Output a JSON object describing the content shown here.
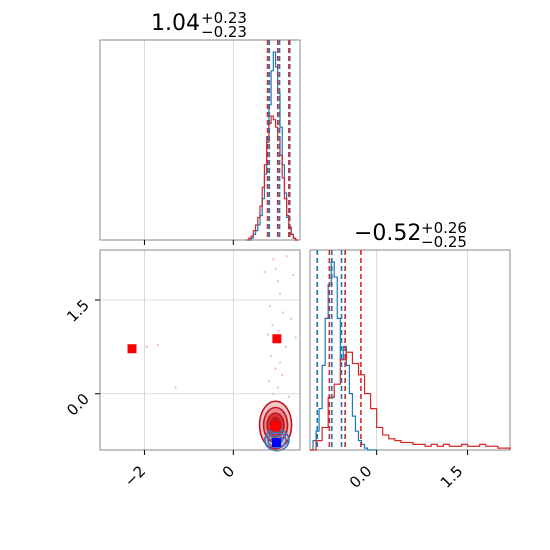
{
  "chart_data": {
    "type": "corner",
    "panels": [
      {
        "id": "marginal-x",
        "type": "histogram",
        "title": {
          "value": "1.04",
          "plus": "+0.23",
          "minus": "−0.23"
        },
        "xlim": [
          -3.0,
          1.5
        ],
        "series": [
          {
            "name": "blue",
            "color": "#1f77b4",
            "bins": [
              0.3,
              0.35,
              0.4,
              0.45,
              0.5,
              0.55,
              0.6,
              0.65,
              0.7,
              0.75,
              0.8,
              0.85,
              0.9,
              0.95,
              1.0,
              1.05,
              1.1,
              1.15,
              1.2,
              1.25,
              1.3,
              1.35,
              1.4,
              1.45
            ],
            "heights": [
              0.0,
              0.0,
              0.01,
              0.03,
              0.05,
              0.08,
              0.13,
              0.22,
              0.35,
              0.55,
              0.72,
              0.9,
              1.0,
              0.92,
              0.78,
              0.6,
              0.4,
              0.25,
              0.12,
              0.06,
              0.03,
              0.01,
              0.0
            ]
          },
          {
            "name": "red",
            "color": "#d62728",
            "bins": [
              0.3,
              0.35,
              0.4,
              0.45,
              0.5,
              0.55,
              0.6,
              0.65,
              0.7,
              0.75,
              0.8,
              0.85,
              0.9,
              0.95,
              1.0,
              1.05,
              1.1,
              1.15,
              1.2,
              1.25,
              1.3,
              1.35,
              1.4,
              1.45
            ],
            "heights": [
              0.0,
              0.01,
              0.02,
              0.05,
              0.08,
              0.12,
              0.18,
              0.28,
              0.4,
              0.52,
              0.62,
              0.66,
              0.64,
              0.6,
              0.55,
              0.45,
              0.33,
              0.22,
              0.13,
              0.07,
              0.03,
              0.01,
              0.0
            ]
          }
        ],
        "quantiles": [
          {
            "color": "#1f77b4",
            "values": [
              0.81,
              1.04,
              1.27
            ]
          },
          {
            "color": "#d62728",
            "values": [
              0.77,
              1.0,
              1.25
            ]
          }
        ]
      },
      {
        "id": "marginal-y",
        "type": "histogram",
        "title": {
          "value": "−0.52",
          "plus": "+0.26",
          "minus": "−0.25"
        },
        "xlim": [
          -1.1,
          2.2
        ],
        "xticks": [
          {
            "value": 0.0,
            "label": "0.0"
          },
          {
            "value": 1.5,
            "label": "1.5"
          }
        ],
        "series": [
          {
            "name": "blue",
            "color": "#1f77b4",
            "bins": [
              -1.1,
              -1.05,
              -1.0,
              -0.95,
              -0.9,
              -0.85,
              -0.8,
              -0.75,
              -0.7,
              -0.65,
              -0.6,
              -0.55,
              -0.5,
              -0.45,
              -0.4,
              -0.35,
              -0.3,
              -0.25,
              -0.2,
              -0.15,
              -0.1,
              -0.05,
              0.0
            ],
            "heights": [
              0.0,
              0.05,
              0.1,
              0.22,
              0.45,
              0.7,
              0.88,
              1.0,
              0.92,
              0.7,
              0.48,
              0.55,
              0.45,
              0.3,
              0.18,
              0.1,
              0.05,
              0.03,
              0.01,
              0.0,
              0.0,
              0.0
            ]
          },
          {
            "name": "red",
            "color": "#d62728",
            "bins": [
              -1.1,
              -1.0,
              -0.9,
              -0.8,
              -0.7,
              -0.6,
              -0.5,
              -0.4,
              -0.3,
              -0.2,
              -0.1,
              0.0,
              0.1,
              0.2,
              0.3,
              0.4,
              0.5,
              0.6,
              0.7,
              0.8,
              0.9,
              1.0,
              1.1,
              1.2,
              1.3,
              1.4,
              1.5,
              1.6,
              1.7,
              1.8,
              1.9,
              2.0,
              2.1,
              2.2
            ],
            "heights": [
              0.0,
              0.05,
              0.12,
              0.28,
              0.35,
              0.48,
              0.52,
              0.46,
              0.4,
              0.3,
              0.22,
              0.12,
              0.08,
              0.06,
              0.05,
              0.04,
              0.04,
              0.03,
              0.03,
              0.02,
              0.03,
              0.02,
              0.03,
              0.02,
              0.02,
              0.03,
              0.02,
              0.02,
              0.03,
              0.02,
              0.02,
              0.01,
              0.01
            ]
          }
        ],
        "quantiles": [
          {
            "color": "#1f77b4",
            "values": [
              -0.98,
              -0.74,
              -0.58
            ]
          },
          {
            "color": "#d62728",
            "values": [
              -0.78,
              -0.52,
              -0.26
            ]
          }
        ]
      },
      {
        "id": "joint",
        "type": "contour-scatter",
        "xlim": [
          -3.0,
          1.5
        ],
        "ylim": [
          -0.9,
          2.3
        ],
        "xticks": [
          {
            "value": -2,
            "label": "−2"
          },
          {
            "value": 0,
            "label": "0"
          }
        ],
        "yticks": [
          {
            "value": 0.0,
            "label": "0.0"
          },
          {
            "value": 1.5,
            "label": "1.5"
          }
        ],
        "red_contours": {
          "center": [
            0.95,
            -0.5
          ],
          "ellipses": [
            {
              "rx": 0.36,
              "ry": 0.38,
              "fill": "#f6c6c8"
            },
            {
              "rx": 0.27,
              "ry": 0.28,
              "fill": "#e98b90"
            },
            {
              "rx": 0.19,
              "ry": 0.19,
              "fill": "#d9343c"
            },
            {
              "rx": 0.11,
              "ry": 0.12,
              "fill": "#c0161e"
            }
          ]
        },
        "blue_contours": {
          "center": [
            0.98,
            -0.74
          ],
          "ellipses": [
            {
              "rx": 0.27,
              "ry": 0.17
            },
            {
              "rx": 0.2,
              "ry": 0.12
            },
            {
              "rx": 0.12,
              "ry": 0.07
            }
          ]
        },
        "scatter_points": [
          [
            -2.2,
            0.72
          ],
          [
            -2.35,
            0.68
          ],
          [
            -1.95,
            0.75
          ],
          [
            -1.7,
            0.78
          ],
          [
            -1.3,
            0.1
          ],
          [
            0.9,
            2.15
          ],
          [
            0.95,
            2.0
          ],
          [
            1.0,
            1.8
          ],
          [
            1.05,
            1.6
          ],
          [
            0.82,
            1.4
          ],
          [
            1.12,
            1.3
          ],
          [
            0.88,
            1.1
          ],
          [
            1.02,
            1.0
          ],
          [
            0.92,
            0.85
          ],
          [
            1.18,
            0.75
          ],
          [
            0.85,
            0.6
          ],
          [
            1.05,
            0.5
          ],
          [
            0.95,
            0.4
          ],
          [
            1.1,
            0.3
          ],
          [
            0.8,
            0.2
          ],
          [
            1.0,
            0.1
          ],
          [
            0.9,
            0.0
          ],
          [
            1.25,
            -0.05
          ],
          [
            1.35,
            1.9
          ],
          [
            1.4,
            0.9
          ],
          [
            0.7,
            1.95
          ],
          [
            1.2,
            2.2
          ],
          [
            1.3,
            1.2
          ],
          [
            0.78,
            0.95
          ]
        ],
        "markers": [
          {
            "name": "red-square-upper-right",
            "color": "#ff0000",
            "x": 0.98,
            "y": 0.88
          },
          {
            "name": "red-square-left",
            "color": "#ff0000",
            "x": -2.28,
            "y": 0.72
          },
          {
            "name": "red-square-center",
            "color": "#ff0000",
            "x": 0.95,
            "y": -0.52
          },
          {
            "name": "blue-square-center",
            "color": "#0000ff",
            "x": 0.97,
            "y": -0.78
          }
        ]
      }
    ]
  },
  "titles": {
    "top": {
      "value": "1.04",
      "plus": "+0.23",
      "minus": "−0.23"
    },
    "right": {
      "value": "−0.52",
      "plus": "+0.26",
      "minus": "−0.25"
    }
  }
}
